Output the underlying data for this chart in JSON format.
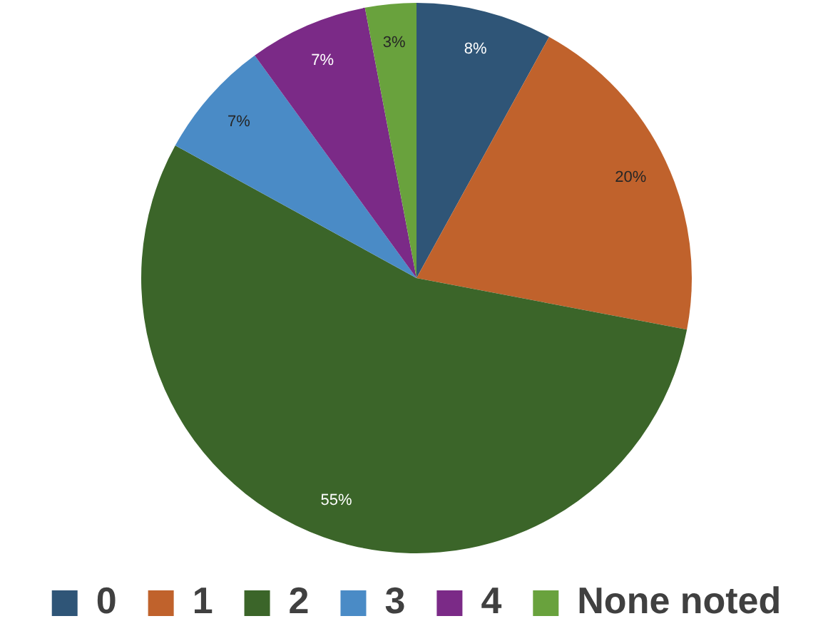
{
  "chart_data": {
    "type": "pie",
    "categories": [
      "0",
      "1",
      "2",
      "3",
      "4",
      "None noted"
    ],
    "values": [
      8,
      20,
      55,
      7,
      7,
      3
    ],
    "colors": [
      "#2f5577",
      "#c0622c",
      "#3b6529",
      "#4a8bc6",
      "#7b2a87",
      "#69a23d"
    ],
    "value_labels": [
      "8%",
      "20%",
      "55%",
      "7%",
      "7%",
      "3%"
    ],
    "legend": "bottom"
  }
}
